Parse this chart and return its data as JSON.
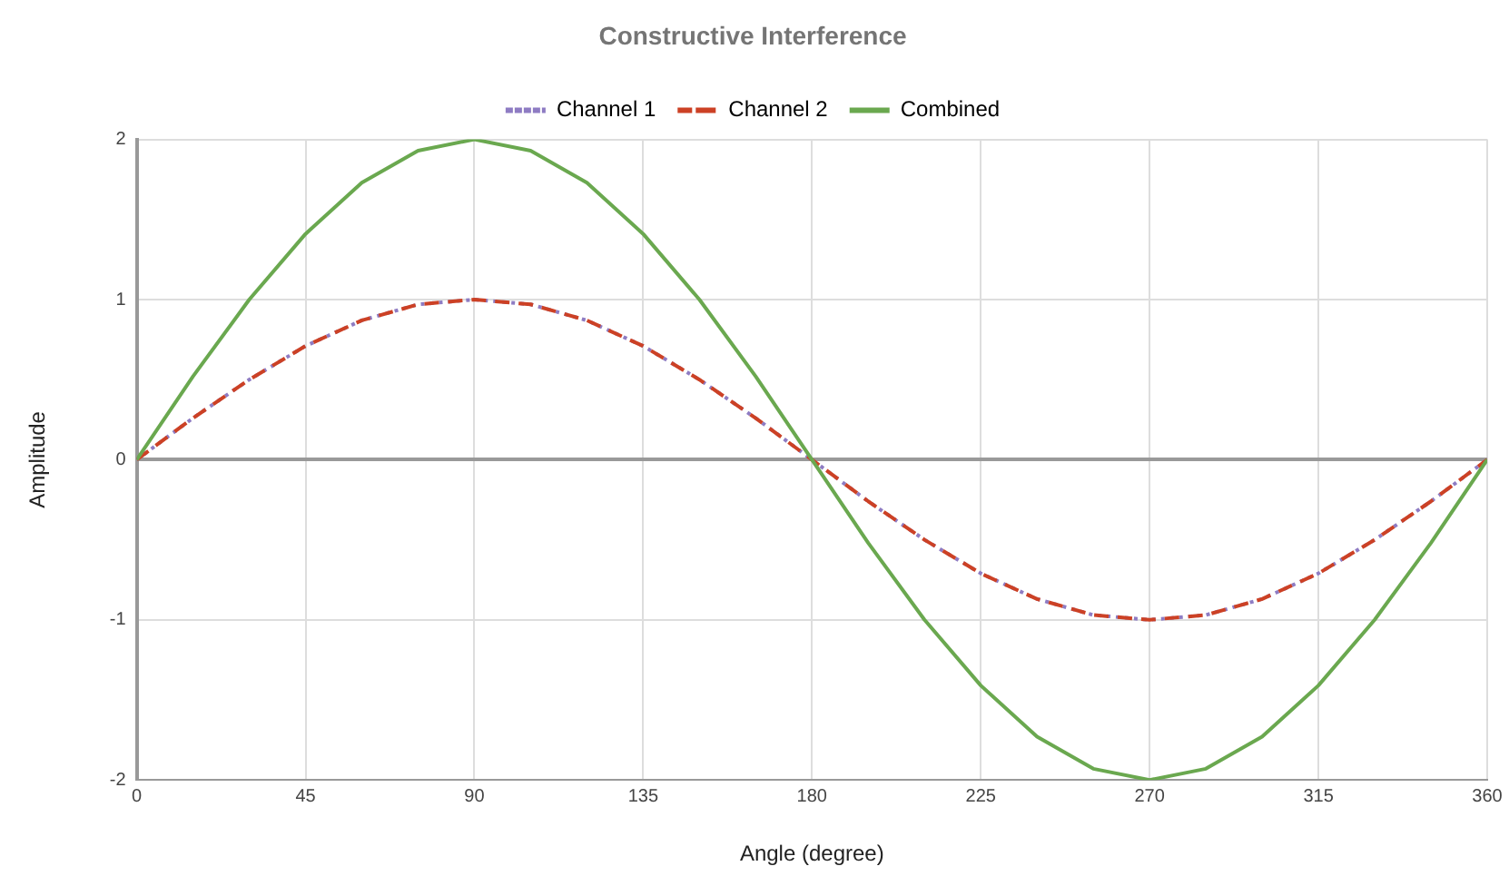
{
  "chart_data": {
    "type": "line",
    "title": "Constructive Interference",
    "xlabel": "Angle (degree)",
    "ylabel": "Amplitude",
    "x": [
      0,
      15,
      30,
      45,
      60,
      75,
      90,
      105,
      120,
      135,
      150,
      165,
      180,
      195,
      210,
      225,
      240,
      255,
      270,
      285,
      300,
      315,
      330,
      345,
      360
    ],
    "series": [
      {
        "name": "Channel 1",
        "color": "#8e7cc3",
        "line_style": "dotted",
        "values": [
          0,
          0.26,
          0.5,
          0.71,
          0.87,
          0.97,
          1,
          0.97,
          0.87,
          0.71,
          0.5,
          0.26,
          0,
          -0.26,
          -0.5,
          -0.71,
          -0.87,
          -0.97,
          -1,
          -0.97,
          -0.87,
          -0.71,
          -0.5,
          -0.26,
          0
        ]
      },
      {
        "name": "Channel 2",
        "color": "#cc4125",
        "line_style": "dashed",
        "values": [
          0,
          0.26,
          0.5,
          0.71,
          0.87,
          0.97,
          1,
          0.97,
          0.87,
          0.71,
          0.5,
          0.26,
          0,
          -0.26,
          -0.5,
          -0.71,
          -0.87,
          -0.97,
          -1,
          -0.97,
          -0.87,
          -0.71,
          -0.5,
          -0.26,
          0
        ]
      },
      {
        "name": "Combined",
        "color": "#6aa84f",
        "line_style": "solid",
        "values": [
          0,
          0.52,
          1,
          1.41,
          1.73,
          1.93,
          2,
          1.93,
          1.73,
          1.41,
          1,
          0.52,
          0,
          -0.52,
          -1,
          -1.41,
          -1.73,
          -1.93,
          -2,
          -1.93,
          -1.73,
          -1.41,
          -1,
          -0.52,
          0
        ]
      }
    ],
    "xlim": [
      0,
      360
    ],
    "xticks": [
      0,
      45,
      90,
      135,
      180,
      225,
      270,
      315,
      360
    ],
    "ylim": [
      -2,
      2
    ],
    "yticks": [
      -2,
      -1,
      0,
      1,
      2
    ],
    "grid": true,
    "legend": "top",
    "marker": "none"
  }
}
